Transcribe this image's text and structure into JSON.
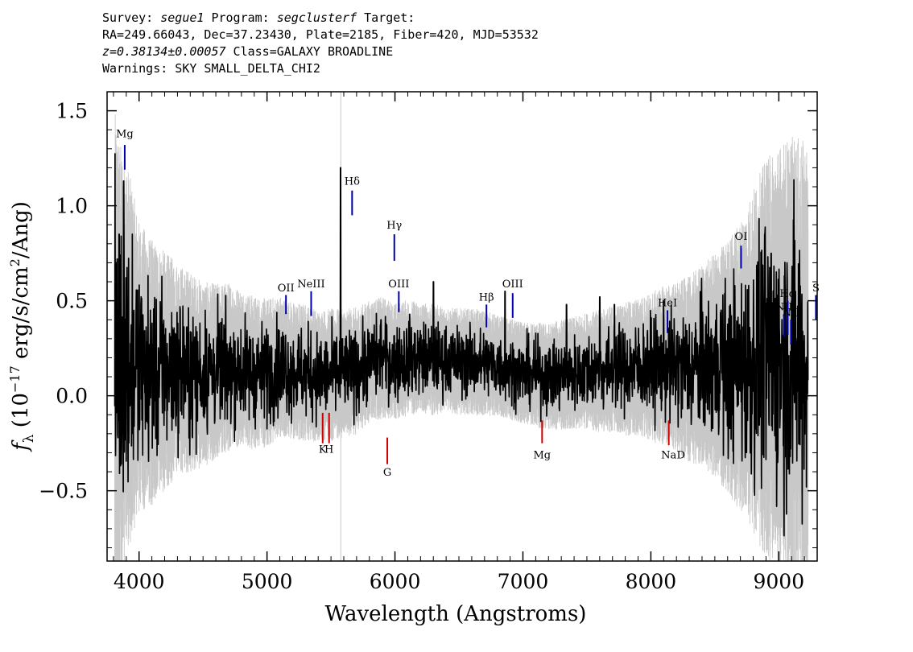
{
  "header": {
    "survey_label": "Survey: ",
    "survey": "segue1",
    "program_label": " Program: ",
    "program": "segclusterf",
    "target_label": " Target:",
    "line2": "RA=249.66043, Dec=37.23430, Plate=2185, Fiber=420, MJD=53532",
    "redshift": "z=0.38134±0.00057",
    "class_text": " Class=GALAXY BROADLINE",
    "warnings": "Warnings: SKY SMALL_DELTA_CHI2"
  },
  "chart_data": {
    "type": "line",
    "title": "",
    "xlabel": "Wavelength (Angstroms)",
    "ylabel": "f_λ (10^-17 erg/s/cm²/Ang)",
    "ylabel_parts": {
      "f": "f",
      "sub": "λ",
      "pre": " (10",
      "exp1": "−17",
      "mid": " erg/s/cm",
      "exp2": "2",
      "post": "/Ang)"
    },
    "xlim": [
      3750,
      9300
    ],
    "ylim": [
      -0.87,
      1.6
    ],
    "xticks": [
      4000,
      5000,
      6000,
      7000,
      8000,
      9000
    ],
    "xtick_labels": [
      "4000",
      "5000",
      "6000",
      "7000",
      "8000",
      "9000"
    ],
    "yticks": [
      -0.5,
      0.0,
      0.5,
      1.0,
      1.5
    ],
    "ytick_labels": [
      "−0.5",
      "0.0",
      "0.5",
      "1.0",
      "1.5"
    ],
    "grid": false,
    "series": [
      {
        "role": "error",
        "color": "#c8c8c8",
        "x": [
          3810,
          3850,
          3900,
          3950,
          4000,
          4100,
          4200,
          4300,
          4400,
          4500,
          4600,
          4700,
          4800,
          4900,
          5000,
          5100,
          5200,
          5300,
          5400,
          5500,
          5600,
          5700,
          5800,
          5900,
          6000,
          6100,
          6200,
          6300,
          6400,
          6500,
          6600,
          6700,
          6800,
          6900,
          7000,
          7100,
          7200,
          7300,
          7400,
          7500,
          7600,
          7700,
          7800,
          7900,
          8000,
          8100,
          8200,
          8300,
          8400,
          8500,
          8600,
          8700,
          8800,
          8900,
          9000,
          9100,
          9200,
          9230
        ],
        "y": [
          1.0,
          0.85,
          0.75,
          0.65,
          0.55,
          0.5,
          0.45,
          0.4,
          0.38,
          0.35,
          0.33,
          0.32,
          0.3,
          0.29,
          0.28,
          0.27,
          0.26,
          0.26,
          0.25,
          0.25,
          0.24,
          0.24,
          0.23,
          0.23,
          0.22,
          0.22,
          0.21,
          0.21,
          0.2,
          0.2,
          0.2,
          0.2,
          0.19,
          0.19,
          0.19,
          0.2,
          0.2,
          0.21,
          0.21,
          0.22,
          0.23,
          0.24,
          0.25,
          0.26,
          0.28,
          0.3,
          0.32,
          0.35,
          0.38,
          0.42,
          0.48,
          0.55,
          0.65,
          0.75,
          0.8,
          0.85,
          0.85,
          0.85
        ]
      },
      {
        "role": "flux",
        "color": "#000000",
        "x": [
          3810,
          3850,
          3900,
          3950,
          4000,
          4100,
          4200,
          4300,
          4400,
          4500,
          4600,
          4700,
          4800,
          4900,
          5000,
          5100,
          5200,
          5300,
          5400,
          5500,
          5600,
          5700,
          5800,
          5900,
          6000,
          6100,
          6200,
          6300,
          6400,
          6500,
          6600,
          6700,
          6800,
          6900,
          7000,
          7100,
          7200,
          7300,
          7400,
          7500,
          7600,
          7700,
          7800,
          7900,
          8000,
          8100,
          8200,
          8300,
          8400,
          8500,
          8600,
          8700,
          8800,
          8900,
          9000,
          9100,
          9200,
          9230
        ],
        "y": [
          0.1,
          0.15,
          0.2,
          0.18,
          0.15,
          0.12,
          0.13,
          0.14,
          0.12,
          0.11,
          0.13,
          0.15,
          0.14,
          0.12,
          0.12,
          0.15,
          0.13,
          0.12,
          0.1,
          0.11,
          0.12,
          0.13,
          0.18,
          0.2,
          0.18,
          0.2,
          0.2,
          0.19,
          0.19,
          0.18,
          0.18,
          0.17,
          0.16,
          0.14,
          0.12,
          0.11,
          0.1,
          0.11,
          0.12,
          0.13,
          0.13,
          0.14,
          0.14,
          0.15,
          0.15,
          0.16,
          0.15,
          0.14,
          0.16,
          0.16,
          0.15,
          0.15,
          0.18,
          0.2,
          0.2,
          0.18,
          0.15,
          0.12
        ]
      }
    ],
    "spikes": [
      {
        "x": 3830,
        "y": 0.72
      },
      {
        "x": 3845,
        "y": 0.85
      },
      {
        "x": 3880,
        "y": 1.13
      },
      {
        "x": 5575,
        "y": 1.2
      },
      {
        "x": 5890,
        "y": 0.4
      },
      {
        "x": 6300,
        "y": 0.6
      },
      {
        "x": 6860,
        "y": 0.55
      },
      {
        "x": 7340,
        "y": 0.48
      },
      {
        "x": 7600,
        "y": 0.52
      },
      {
        "x": 7715,
        "y": 0.48
      },
      {
        "x": 8550,
        "y": 0.45
      },
      {
        "x": 8890,
        "y": 0.85
      },
      {
        "x": 8940,
        "y": 0.75
      },
      {
        "x": 9100,
        "y": 0.5
      }
    ],
    "lines": [
      {
        "label": "Mg",
        "x": 3888,
        "y0": 1.19,
        "y1": 1.32,
        "color": "#0000aa",
        "label_y": 1.36
      },
      {
        "label": "OII",
        "x": 5148,
        "y0": 0.43,
        "y1": 0.53,
        "color": "#0000aa",
        "label_y": 0.55
      },
      {
        "label": "NeIII",
        "x": 5345,
        "y0": 0.42,
        "y1": 0.55,
        "color": "#0000aa",
        "label_y": 0.57
      },
      {
        "label": "Hδ",
        "x": 5665,
        "y0": 0.95,
        "y1": 1.08,
        "color": "#0000aa",
        "label_y": 1.11
      },
      {
        "label": "Hγ",
        "x": 5995,
        "y0": 0.71,
        "y1": 0.85,
        "color": "#0000aa",
        "label_y": 0.88
      },
      {
        "label": "OIII",
        "x": 6030,
        "y0": 0.44,
        "y1": 0.55,
        "color": "#0000aa",
        "label_y": 0.57
      },
      {
        "label": "Hβ",
        "x": 6715,
        "y0": 0.36,
        "y1": 0.48,
        "color": "#0000aa",
        "label_y": 0.5
      },
      {
        "label": "OIII",
        "x": 6920,
        "y0": 0.41,
        "y1": 0.54,
        "color": "#0000aa",
        "label_y": 0.57
      },
      {
        "label": "HeI",
        "x": 8130,
        "y0": 0.33,
        "y1": 0.45,
        "color": "#0000aa",
        "label_y": 0.47
      },
      {
        "label": "OI",
        "x": 8705,
        "y0": 0.67,
        "y1": 0.79,
        "color": "#0000aa",
        "label_y": 0.82
      },
      {
        "label": "NII",
        "x": 9040,
        "y0": 0.31,
        "y1": 0.43,
        "color": "#0000aa",
        "label_y": 0.45
      },
      {
        "label": "Hα",
        "x": 9070,
        "y0": 0.32,
        "y1": 0.5,
        "color": "#0000aa",
        "label_y": 0.52
      },
      {
        "label": "NII",
        "x": 9095,
        "y0": 0.27,
        "y1": 0.4,
        "color": "#0000aa",
        "label_y": 0.42
      },
      {
        "label": "S",
        "x": 9290,
        "y0": 0.4,
        "y1": 0.53,
        "color": "#0000aa",
        "label_y": 0.55
      },
      {
        "label": "K",
        "x": 5435,
        "y0": -0.25,
        "y1": -0.09,
        "color": "#cc0000",
        "label_y": -0.3
      },
      {
        "label": "H",
        "x": 5485,
        "y0": -0.25,
        "y1": -0.09,
        "color": "#cc0000",
        "label_y": -0.3
      },
      {
        "label": "G",
        "x": 5940,
        "y0": -0.36,
        "y1": -0.22,
        "color": "#cc0000",
        "label_y": -0.42
      },
      {
        "label": "Mg",
        "x": 7150,
        "y0": -0.25,
        "y1": -0.13,
        "color": "#cc0000",
        "label_y": -0.33
      },
      {
        "label": "Na",
        "x": 8140,
        "y0": -0.26,
        "y1": -0.13,
        "color": "#cc0000",
        "label_y": -0.33
      }
    ],
    "extra_labels": [
      {
        "label": "D",
        "x": 8235,
        "y": -0.33
      }
    ]
  }
}
